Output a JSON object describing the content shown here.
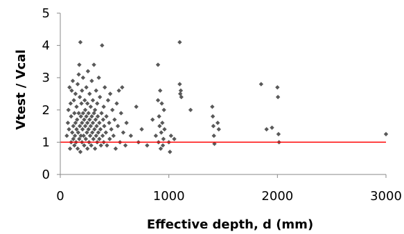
{
  "chart_data": {
    "type": "scatter",
    "title": "",
    "xlabel": "Effective depth, d (mm)",
    "ylabel": "Vtest / Vcal",
    "xlim": [
      0,
      3000
    ],
    "ylim": [
      0,
      5
    ],
    "xticks": [
      0,
      1000,
      2000,
      3000
    ],
    "yticks": [
      0,
      1,
      2,
      3,
      4,
      5
    ],
    "grid": false,
    "legend": "none",
    "marker_color": "#595959",
    "reference_line": {
      "y": 1,
      "color": "#ff0000"
    },
    "series": [
      {
        "points": [
          [
            60,
            1.2
          ],
          [
            70,
            1.6
          ],
          [
            75,
            2.0
          ],
          [
            80,
            1.4
          ],
          [
            85,
            2.7
          ],
          [
            90,
            0.8
          ],
          [
            95,
            2.2
          ],
          [
            100,
            1.0
          ],
          [
            100,
            1.8
          ],
          [
            105,
            2.6
          ],
          [
            110,
            1.3
          ],
          [
            115,
            2.9
          ],
          [
            120,
            1.1
          ],
          [
            120,
            1.5
          ],
          [
            125,
            2.3
          ],
          [
            130,
            0.9
          ],
          [
            130,
            1.9
          ],
          [
            135,
            1.2
          ],
          [
            140,
            2.5
          ],
          [
            140,
            1.6
          ],
          [
            145,
            1.0
          ],
          [
            150,
            1.4
          ],
          [
            150,
            2.1
          ],
          [
            155,
            1.7
          ],
          [
            160,
            0.8
          ],
          [
            160,
            2.8
          ],
          [
            165,
            1.3
          ],
          [
            170,
            1.9
          ],
          [
            170,
            3.1
          ],
          [
            175,
            1.1
          ],
          [
            175,
            3.4
          ],
          [
            180,
            1.5
          ],
          [
            180,
            2.4
          ],
          [
            185,
            0.7
          ],
          [
            185,
            4.1
          ],
          [
            190,
            1.2
          ],
          [
            190,
            1.8
          ],
          [
            195,
            2.2
          ],
          [
            200,
            1.0
          ],
          [
            200,
            1.6
          ],
          [
            200,
            2.6
          ],
          [
            205,
            1.4
          ],
          [
            210,
            1.9
          ],
          [
            210,
            3.0
          ],
          [
            215,
            1.2
          ],
          [
            220,
            0.9
          ],
          [
            220,
            1.7
          ],
          [
            225,
            2.3
          ],
          [
            230,
            1.5
          ],
          [
            230,
            2.0
          ],
          [
            235,
            1.1
          ],
          [
            240,
            1.8
          ],
          [
            240,
            2.7
          ],
          [
            245,
            1.3
          ],
          [
            250,
            0.8
          ],
          [
            250,
            1.6
          ],
          [
            250,
            2.2
          ],
          [
            255,
            3.2
          ],
          [
            260,
            1.4
          ],
          [
            260,
            1.9
          ],
          [
            265,
            1.0
          ],
          [
            270,
            1.7
          ],
          [
            270,
            2.5
          ],
          [
            275,
            1.2
          ],
          [
            280,
            1.5
          ],
          [
            280,
            2.1
          ],
          [
            285,
            0.9
          ],
          [
            290,
            1.8
          ],
          [
            290,
            2.9
          ],
          [
            295,
            1.3
          ],
          [
            300,
            1.6
          ],
          [
            300,
            2.3
          ],
          [
            305,
            1.1
          ],
          [
            310,
            1.9
          ],
          [
            310,
            3.4
          ],
          [
            315,
            1.4
          ],
          [
            320,
            0.8
          ],
          [
            320,
            2.0
          ],
          [
            325,
            1.7
          ],
          [
            330,
            1.2
          ],
          [
            330,
            2.6
          ],
          [
            335,
            1.5
          ],
          [
            340,
            1.0
          ],
          [
            340,
            2.2
          ],
          [
            345,
            1.8
          ],
          [
            350,
            1.3
          ],
          [
            355,
            3.0
          ],
          [
            360,
            1.6
          ],
          [
            360,
            1.1
          ],
          [
            365,
            2.4
          ],
          [
            370,
            1.4
          ],
          [
            375,
            0.9
          ],
          [
            380,
            1.9
          ],
          [
            385,
            4.0
          ],
          [
            390,
            1.2
          ],
          [
            395,
            1.7
          ],
          [
            400,
            2.1
          ],
          [
            400,
            1.0
          ],
          [
            405,
            1.5
          ],
          [
            410,
            2.7
          ],
          [
            420,
            1.3
          ],
          [
            425,
            1.8
          ],
          [
            430,
            0.9
          ],
          [
            440,
            2.3
          ],
          [
            450,
            1.6
          ],
          [
            455,
            1.1
          ],
          [
            460,
            2.5
          ],
          [
            470,
            1.4
          ],
          [
            480,
            2.0
          ],
          [
            490,
            1.2
          ],
          [
            500,
            1.7
          ],
          [
            510,
            0.8
          ],
          [
            520,
            2.2
          ],
          [
            530,
            1.5
          ],
          [
            540,
            2.6
          ],
          [
            550,
            1.0
          ],
          [
            560,
            1.9
          ],
          [
            570,
            2.7
          ],
          [
            580,
            1.3
          ],
          [
            600,
            0.9
          ],
          [
            610,
            1.6
          ],
          [
            650,
            1.2
          ],
          [
            700,
            2.1
          ],
          [
            720,
            1.0
          ],
          [
            750,
            1.4
          ],
          [
            800,
            0.9
          ],
          [
            850,
            1.7
          ],
          [
            880,
            1.2
          ],
          [
            900,
            3.4
          ],
          [
            900,
            2.3
          ],
          [
            905,
            1.0
          ],
          [
            910,
            1.8
          ],
          [
            915,
            1.5
          ],
          [
            920,
            2.6
          ],
          [
            925,
            0.8
          ],
          [
            930,
            1.3
          ],
          [
            935,
            2.2
          ],
          [
            940,
            1.6
          ],
          [
            945,
            0.9
          ],
          [
            950,
            1.1
          ],
          [
            955,
            2.0
          ],
          [
            960,
            1.4
          ],
          [
            1000,
            1.0
          ],
          [
            1010,
            0.7
          ],
          [
            1020,
            1.2
          ],
          [
            1050,
            1.1
          ],
          [
            1100,
            4.1
          ],
          [
            1100,
            2.8
          ],
          [
            1105,
            2.5
          ],
          [
            1110,
            2.6
          ],
          [
            1115,
            2.4
          ],
          [
            1200,
            2.0
          ],
          [
            1400,
            2.1
          ],
          [
            1405,
            1.8
          ],
          [
            1410,
            1.5
          ],
          [
            1415,
            1.2
          ],
          [
            1420,
            0.95
          ],
          [
            1450,
            1.6
          ],
          [
            1460,
            1.4
          ],
          [
            1850,
            2.8
          ],
          [
            1900,
            1.4
          ],
          [
            1950,
            1.45
          ],
          [
            2000,
            2.7
          ],
          [
            2005,
            2.4
          ],
          [
            2010,
            1.25
          ],
          [
            2015,
            1.0
          ],
          [
            3000,
            1.25
          ]
        ]
      }
    ]
  }
}
